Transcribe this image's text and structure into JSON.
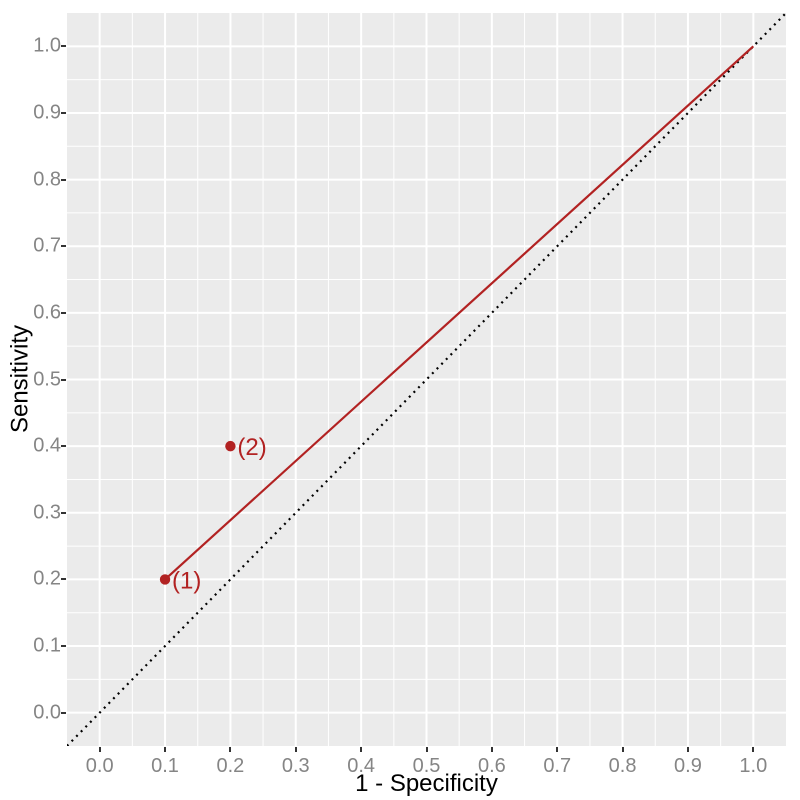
{
  "chart_data": {
    "type": "line",
    "title": "",
    "xlabel": "1 - Specificity",
    "ylabel": "Sensitivity",
    "xlim": [
      -0.05,
      1.05
    ],
    "ylim": [
      -0.05,
      1.05
    ],
    "x_ticks": [
      "0.0",
      "0.1",
      "0.2",
      "0.3",
      "0.4",
      "0.5",
      "0.6",
      "0.7",
      "0.8",
      "0.9",
      "1.0"
    ],
    "y_ticks": [
      "0.0",
      "0.1",
      "0.2",
      "0.3",
      "0.4",
      "0.5",
      "0.6",
      "0.7",
      "0.8",
      "0.9",
      "1.0"
    ],
    "grid": {
      "major_step": 0.1,
      "minor_step": 0.05,
      "grid_color": "#FFFFFF",
      "panel_bg": "#EBEBEB"
    },
    "legend": null,
    "series": [
      {
        "name": "chance-diagonal",
        "style": "dotted",
        "color": "#000000",
        "x": [
          -0.05,
          1.05
        ],
        "y": [
          -0.05,
          1.05
        ]
      },
      {
        "name": "roc-line",
        "style": "solid",
        "color": "#B22222",
        "x": [
          0.1,
          1.0
        ],
        "y": [
          0.2,
          1.0
        ]
      }
    ],
    "points": [
      {
        "x": 0.1,
        "y": 0.2,
        "label": "(1)",
        "color": "#B22222"
      },
      {
        "x": 0.2,
        "y": 0.4,
        "label": "(2)",
        "color": "#B22222"
      }
    ],
    "colors": {
      "tick_label": "#858585",
      "tick_mark": "#333333",
      "axis_title": "#000000"
    }
  }
}
